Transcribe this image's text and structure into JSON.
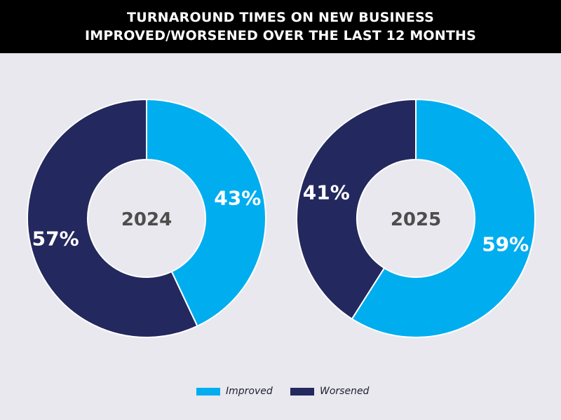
{
  "title": {
    "line1": "TURNAROUND TIMES ON NEW BUSINESS",
    "line2": "IMPROVED/WORSENED OVER THE LAST 12 MONTHS"
  },
  "colors": {
    "improved": "#00adef",
    "worsened": "#23285e",
    "center_text": "#4d4d4d",
    "slice_label": "#ffffff",
    "background": "#e8e8ee",
    "header_bg": "#000000"
  },
  "legend": [
    {
      "label": "Improved",
      "color": "#00adef"
    },
    {
      "label": "Worsened",
      "color": "#23285e"
    }
  ],
  "chart_data": [
    {
      "type": "pie",
      "center_label": "2024",
      "slices": [
        {
          "name": "Improved",
          "value": 43,
          "label": "43%"
        },
        {
          "name": "Worsened",
          "value": 57,
          "label": "57%"
        }
      ]
    },
    {
      "type": "pie",
      "center_label": "2025",
      "slices": [
        {
          "name": "Improved",
          "value": 59,
          "label": "59%"
        },
        {
          "name": "Worsened",
          "value": 41,
          "label": "41%"
        }
      ]
    }
  ]
}
